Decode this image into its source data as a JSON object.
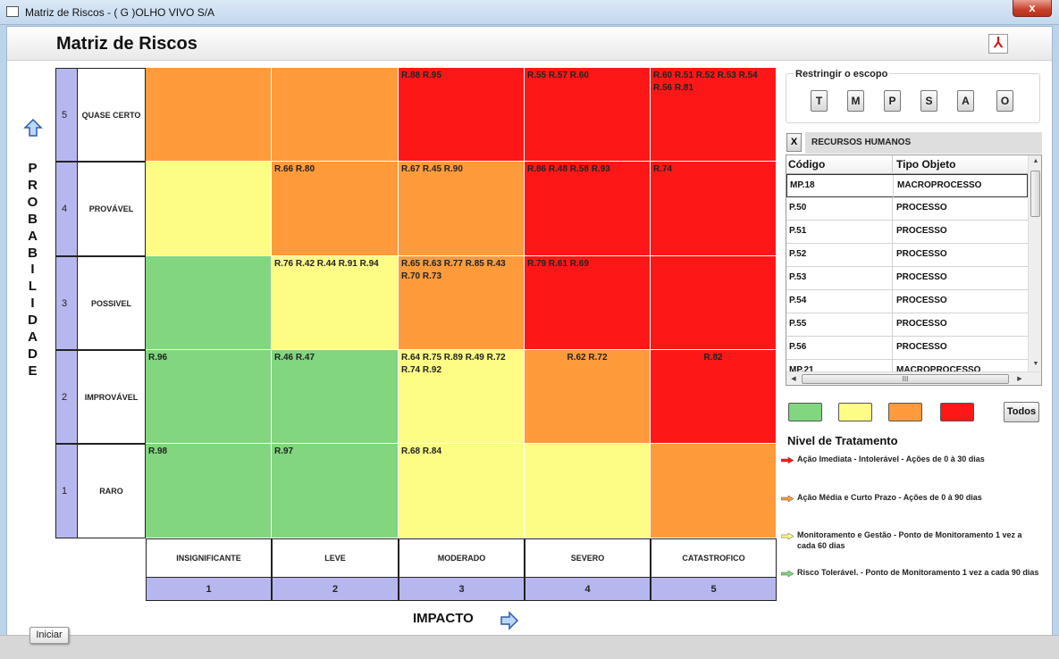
{
  "window": {
    "title": "Matriz de Riscos - ( G )OLHO VIVO S/A",
    "close": "x"
  },
  "page": {
    "title": "Matriz de Riscos",
    "pdf_icon": "pdf-icon"
  },
  "axes": {
    "probability_label": "PROBABILIDADE",
    "impact_label": "IMPACTO",
    "probability_levels": [
      {
        "num": "5",
        "name": "QUASE CERTO"
      },
      {
        "num": "4",
        "name": "PROVÁVEL"
      },
      {
        "num": "3",
        "name": "POSSIVEL"
      },
      {
        "num": "2",
        "name": "IMPROVÁVEL"
      },
      {
        "num": "1",
        "name": "RARO"
      }
    ],
    "impact_levels": [
      {
        "num": "1",
        "name": "INSIGNIFICANTE"
      },
      {
        "num": "2",
        "name": "LEVE"
      },
      {
        "num": "3",
        "name": "MODERADO"
      },
      {
        "num": "4",
        "name": "SEVERO"
      },
      {
        "num": "5",
        "name": "CATASTROFICO"
      }
    ]
  },
  "colors": {
    "green": "#81d67f",
    "yellow": "#fdfc85",
    "orange": "#ff9b3b",
    "red": "#fe1717"
  },
  "matrix": [
    [
      {
        "c": "orange",
        "t": ""
      },
      {
        "c": "orange",
        "t": ""
      },
      {
        "c": "red",
        "t": "R.88 R.95"
      },
      {
        "c": "red",
        "t": "R.55 R.57 R.60"
      },
      {
        "c": "red",
        "t": "R.60 R.51 R.52 R.53 R.54 R.56 R.81"
      }
    ],
    [
      {
        "c": "yellow",
        "t": ""
      },
      {
        "c": "orange",
        "t": "R.66 R.80"
      },
      {
        "c": "orange",
        "t": "R.67 R.45 R.90"
      },
      {
        "c": "red",
        "t": "R.86 R.48 R.58 R.93"
      },
      {
        "c": "red",
        "t": "R.74"
      }
    ],
    [
      {
        "c": "green",
        "t": ""
      },
      {
        "c": "yellow",
        "t": "R.76 R.42 R.44 R.91 R.94"
      },
      {
        "c": "orange",
        "t": "R.65 R.63 R.77 R.85 R.43 R.70 R.73"
      },
      {
        "c": "red",
        "t": "R.79 R.61 R.69"
      },
      {
        "c": "red",
        "t": ""
      }
    ],
    [
      {
        "c": "green",
        "t": "R.96"
      },
      {
        "c": "green",
        "t": "R.46 R.47"
      },
      {
        "c": "yellow",
        "t": "R.64 R.75 R.89 R.49 R.72 R.74 R.92"
      },
      {
        "c": "orange",
        "t": "R.62 R.72"
      },
      {
        "c": "red",
        "t": "R.82"
      }
    ],
    [
      {
        "c": "green",
        "t": "R.98"
      },
      {
        "c": "green",
        "t": "R.97"
      },
      {
        "c": "yellow",
        "t": "R.68 R.84"
      },
      {
        "c": "yellow",
        "t": ""
      },
      {
        "c": "orange",
        "t": ""
      }
    ]
  ],
  "scope": {
    "legend": "Restringir o escopo",
    "buttons": [
      "T",
      "M",
      "P",
      "S",
      "A",
      "O"
    ]
  },
  "filter": {
    "x_label": "X",
    "title": "RECURSOS HUMANOS"
  },
  "table": {
    "headers": [
      "Código",
      "Tipo Objeto"
    ],
    "rows": [
      [
        "MP.18",
        "MACROPROCESSO"
      ],
      [
        "P.50",
        "PROCESSO"
      ],
      [
        "P.51",
        "PROCESSO"
      ],
      [
        "P.52",
        "PROCESSO"
      ],
      [
        "P.53",
        "PROCESSO"
      ],
      [
        "P.54",
        "PROCESSO"
      ],
      [
        "P.55",
        "PROCESSO"
      ],
      [
        "P.56",
        "PROCESSO"
      ],
      [
        "MP.21",
        "MACROPROCESSO"
      ]
    ],
    "hscroll_grip": "III"
  },
  "legend_buttons": {
    "todos": "Todos"
  },
  "nivel": {
    "title": "Nivel de Tratamento",
    "items": [
      {
        "color": "red",
        "text": "Ação Imediata - Intolerável - Ações de 0 à 30 dias"
      },
      {
        "color": "orange",
        "text": "Ação Média e Curto Prazo - Ações de 0 à 90 dias"
      },
      {
        "color": "yellow",
        "text": "Monitoramento e Gestão - Ponto de Monitoramento 1 vez a cada 60 dias"
      },
      {
        "color": "green",
        "text": "Risco Tolerável. - Ponto de Monitoramento 1 vez a cada 90 dias"
      }
    ]
  },
  "taskbar": {
    "iniciar": "Iniciar"
  }
}
